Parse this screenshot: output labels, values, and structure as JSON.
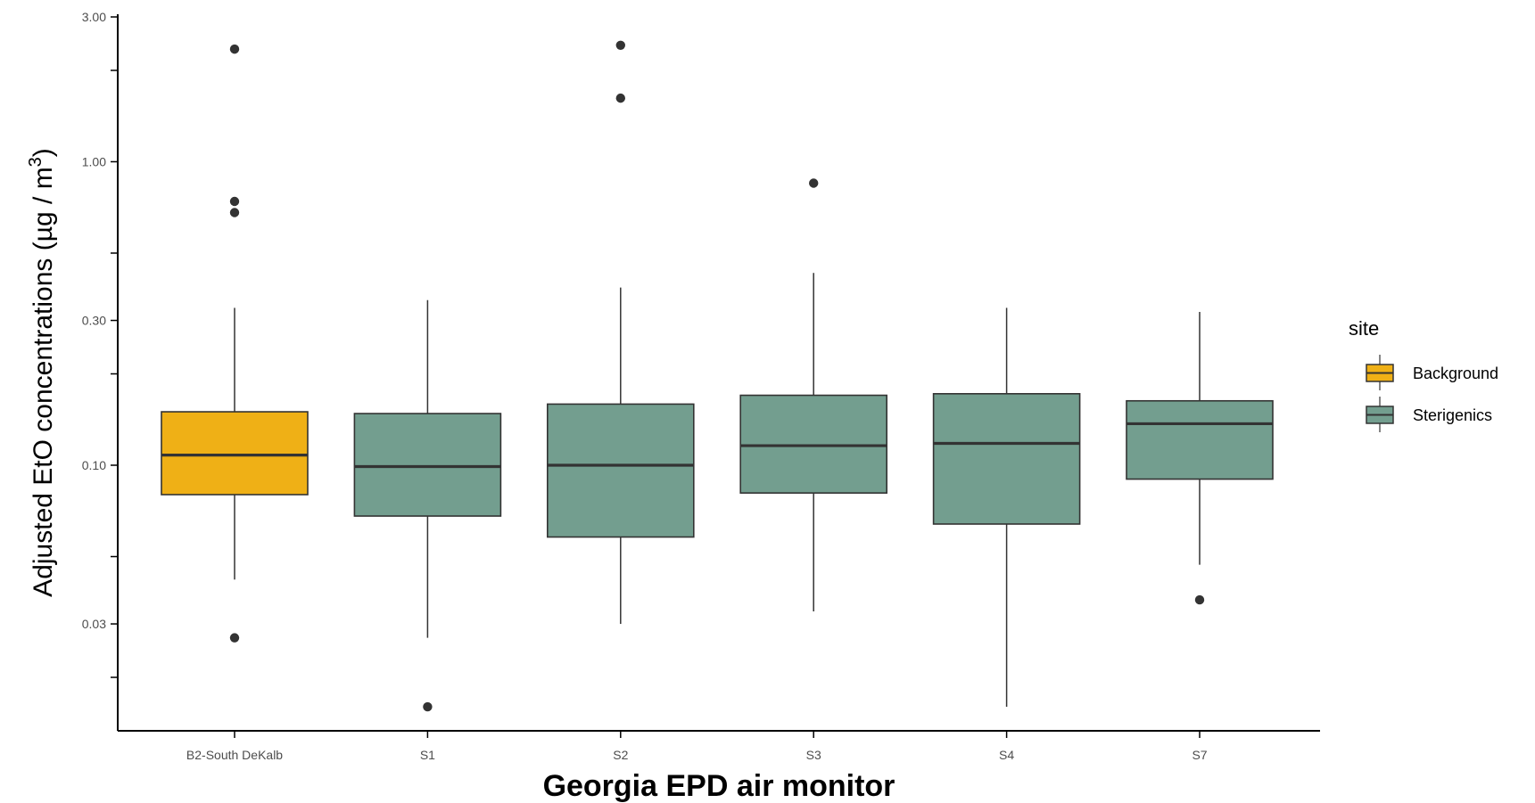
{
  "chart_data": {
    "type": "box",
    "xlabel": "Georgia EPD air monitor",
    "ylabel_text": "Adjusted EtO concentrations (µg / m",
    "ylabel_superscript": "3",
    "ylabel_close": ")",
    "y_scale": "log10",
    "ylim": [
      0.0165,
      3.0
    ],
    "y_ticks": [
      {
        "value": 3.0,
        "label": "3.00"
      },
      {
        "value": 1.0,
        "label": "1.00"
      },
      {
        "value": 0.3,
        "label": "0.30"
      },
      {
        "value": 0.1,
        "label": "0.10"
      },
      {
        "value": 0.03,
        "label": "0.03"
      }
    ],
    "y_minor_ticks": [
      2,
      0.5,
      0.2,
      0.05,
      0.02
    ],
    "categories": [
      "B2-South DeKalb",
      "S1",
      "S2",
      "S3",
      "S4",
      "S7"
    ],
    "legend": {
      "title": "site",
      "position": "right",
      "entries": [
        {
          "label": "Background",
          "color": "#EFB016"
        },
        {
          "label": "Sterigenics",
          "color": "#739E8F"
        }
      ]
    },
    "grid": false,
    "boxes": [
      {
        "category": "B2-South DeKalb",
        "site": "Background",
        "whisker_low": 0.042,
        "q1": 0.08,
        "median": 0.108,
        "q3": 0.15,
        "whisker_high": 0.33,
        "outliers": [
          2.35,
          0.74,
          0.68,
          0.027
        ]
      },
      {
        "category": "S1",
        "site": "Sterigenics",
        "whisker_low": 0.027,
        "q1": 0.068,
        "median": 0.099,
        "q3": 0.148,
        "whisker_high": 0.35,
        "outliers": [
          0.016
        ]
      },
      {
        "category": "S2",
        "site": "Sterigenics",
        "whisker_low": 0.03,
        "q1": 0.058,
        "median": 0.1,
        "q3": 0.159,
        "whisker_high": 0.385,
        "outliers": [
          2.42,
          1.62
        ]
      },
      {
        "category": "S3",
        "site": "Sterigenics",
        "whisker_low": 0.033,
        "q1": 0.081,
        "median": 0.116,
        "q3": 0.17,
        "whisker_high": 0.43,
        "outliers": [
          0.85
        ]
      },
      {
        "category": "S4",
        "site": "Sterigenics",
        "whisker_low": 0.016,
        "q1": 0.064,
        "median": 0.118,
        "q3": 0.172,
        "whisker_high": 0.33,
        "outliers": []
      },
      {
        "category": "S7",
        "site": "Sterigenics",
        "whisker_low": 0.047,
        "q1": 0.09,
        "median": 0.137,
        "q3": 0.163,
        "whisker_high": 0.32,
        "outliers": [
          0.036
        ]
      }
    ]
  },
  "colors": {
    "axis": "#000000",
    "box_outline": "#333333",
    "point": "#333333"
  }
}
